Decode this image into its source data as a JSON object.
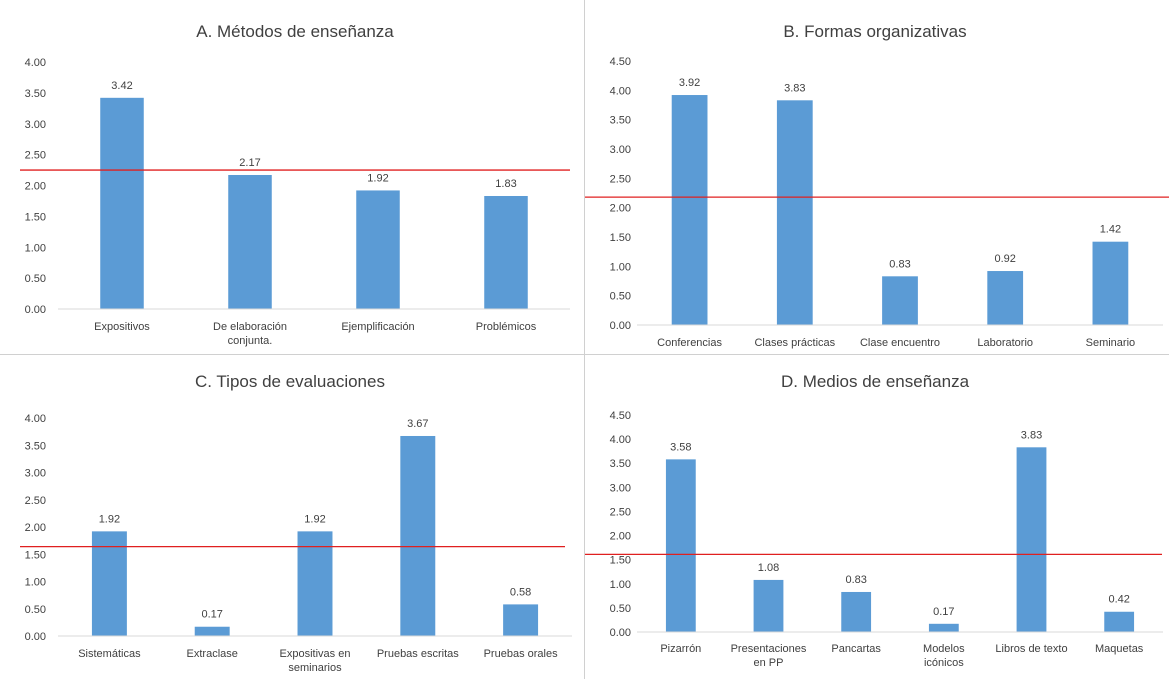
{
  "colors": {
    "bar": "#5b9bd5",
    "reference_line": "#e02020",
    "grid": "#d9d9d9",
    "text": "#404040"
  },
  "chart_data": [
    {
      "type": "bar",
      "title": "A. Métodos de enseñanza",
      "categories": [
        [
          "Expositivos"
        ],
        [
          "De elaboración",
          "conjunta."
        ],
        [
          "Ejemplificación"
        ],
        [
          "Problémicos"
        ]
      ],
      "values": [
        3.42,
        2.17,
        1.92,
        1.83
      ],
      "data_labels": [
        "3.42",
        "2.17",
        "1.92",
        "1.83"
      ],
      "y_ticks": [
        "0.00",
        "0.50",
        "1.00",
        "1.50",
        "2.00",
        "2.50",
        "3.00",
        "3.50",
        "4.00"
      ],
      "ylim": [
        0,
        4
      ],
      "reference_line": 2.25,
      "grid": false
    },
    {
      "type": "bar",
      "title": "B. Formas organizativas",
      "categories": [
        [
          "Conferencias"
        ],
        [
          "Clases prácticas"
        ],
        [
          "Clase encuentro"
        ],
        [
          "Laboratorio"
        ],
        [
          "Seminario"
        ]
      ],
      "values": [
        3.92,
        3.83,
        0.83,
        0.92,
        1.42
      ],
      "data_labels": [
        "3.92",
        "3.83",
        "0.83",
        "0.92",
        "1.42"
      ],
      "y_ticks": [
        "0.00",
        "0.50",
        "1.00",
        "1.50",
        "2.00",
        "2.50",
        "3.00",
        "3.50",
        "4.00",
        "4.50"
      ],
      "ylim": [
        0,
        4.5
      ],
      "reference_line": 2.18,
      "grid": false
    },
    {
      "type": "bar",
      "title": "C. Tipos de evaluaciones",
      "categories": [
        [
          "Sistemáticas"
        ],
        [
          "Extraclase"
        ],
        [
          "Expositivas en",
          "seminarios"
        ],
        [
          "Pruebas escritas"
        ],
        [
          "Pruebas orales"
        ]
      ],
      "values": [
        1.92,
        0.17,
        1.92,
        3.67,
        0.58
      ],
      "data_labels": [
        "1.92",
        "0.17",
        "1.92",
        "3.67",
        "0.58"
      ],
      "y_ticks": [
        "0.00",
        "0.50",
        "1.00",
        "1.50",
        "2.00",
        "2.50",
        "3.00",
        "3.50",
        "4.00"
      ],
      "ylim": [
        0,
        4
      ],
      "reference_line": 1.64,
      "grid": false
    },
    {
      "type": "bar",
      "title": "D. Medios de enseñanza",
      "categories": [
        [
          "Pizarrón"
        ],
        [
          "Presentaciones",
          "en PP"
        ],
        [
          "Pancartas"
        ],
        [
          "Modelos",
          "icónicos"
        ],
        [
          "Libros de texto"
        ],
        [
          "Maquetas"
        ]
      ],
      "values": [
        3.58,
        1.08,
        0.83,
        0.17,
        3.83,
        0.42
      ],
      "data_labels": [
        "3.58",
        "1.08",
        "0.83",
        "0.17",
        "3.83",
        "0.42"
      ],
      "y_ticks": [
        "0.00",
        "0.50",
        "1.00",
        "1.50",
        "2.00",
        "2.50",
        "3.00",
        "3.50",
        "4.00",
        "4.50"
      ],
      "ylim": [
        0,
        4.5
      ],
      "reference_line": 1.61,
      "grid": false
    }
  ]
}
